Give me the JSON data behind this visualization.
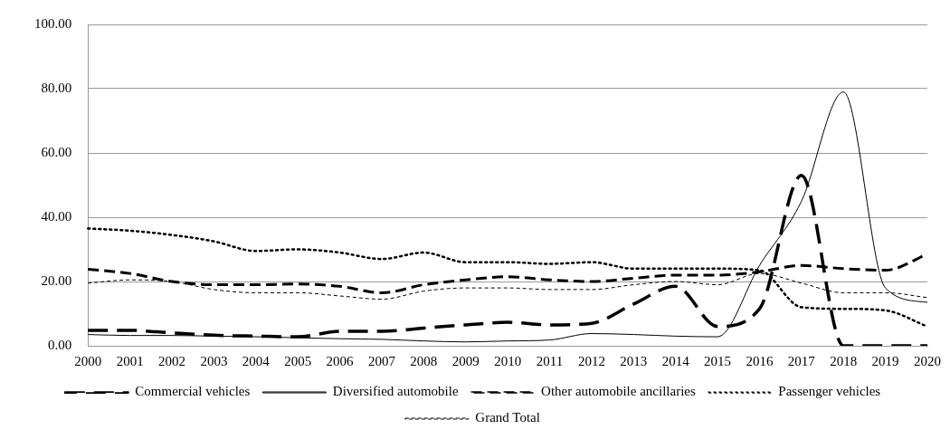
{
  "chart_data": {
    "type": "line",
    "categories": [
      "2000",
      "2001",
      "2002",
      "2003",
      "2004",
      "2005",
      "2006",
      "2007",
      "2008",
      "2009",
      "2010",
      "2011",
      "2012",
      "2013",
      "2014",
      "2015",
      "2016",
      "2017",
      "2018",
      "2019",
      "2020"
    ],
    "series": [
      {
        "name": "Commercial vehicles",
        "color": "#000000",
        "line_style": "dashed",
        "values": [
          4.8,
          4.8,
          4,
          3.3,
          3,
          2.8,
          4.5,
          4.5,
          5.5,
          6.5,
          7.3,
          6.5,
          7,
          13,
          18.5,
          6,
          11.5,
          53,
          0,
          0,
          0
        ]
      },
      {
        "name": "Diversified automobile",
        "color": "#000000",
        "line_style": "solid",
        "values": [
          3.5,
          3.2,
          3.2,
          3,
          2.8,
          2.5,
          2.2,
          2,
          1.5,
          1.2,
          1.5,
          1.8,
          3.8,
          3.5,
          3,
          2.8,
          25,
          45,
          79,
          18,
          13.5
        ]
      },
      {
        "name": "Other automobile ancillaries",
        "color": "#000000",
        "line_style": "dashed",
        "values": [
          23.8,
          22.5,
          20,
          19,
          19,
          19.2,
          18.5,
          16.5,
          19,
          20.5,
          21.5,
          20.5,
          20,
          21,
          22,
          22,
          23,
          25,
          24,
          23.5,
          28.5
        ]
      },
      {
        "name": "Passenger vehicles",
        "color": "#000000",
        "line_style": "dotted",
        "values": [
          36.5,
          35.8,
          34.5,
          32.5,
          29.5,
          30,
          29,
          27,
          29,
          26,
          26,
          25.5,
          26,
          24,
          24,
          24,
          23.5,
          12,
          11.5,
          11,
          6
        ]
      },
      {
        "name": "Grand Total",
        "color": "#000000",
        "line_style": "dashed",
        "values": [
          19.5,
          20.5,
          20,
          17.5,
          16.5,
          16.5,
          15.5,
          14.5,
          17,
          18,
          18,
          17.5,
          17.5,
          19,
          20,
          19,
          22.5,
          19.5,
          16.5,
          16.5,
          15
        ]
      }
    ],
    "ylim": [
      0,
      100
    ],
    "yticks": [
      {
        "value": 0,
        "label": "0.00"
      },
      {
        "value": 20,
        "label": "20.00"
      },
      {
        "value": 40,
        "label": "40.00"
      },
      {
        "value": 60,
        "label": "60.00"
      },
      {
        "value": 80,
        "label": "80.00"
      },
      {
        "value": 100,
        "label": "100.00"
      }
    ],
    "grid": "y",
    "legend": "bottom",
    "marker": "none"
  }
}
